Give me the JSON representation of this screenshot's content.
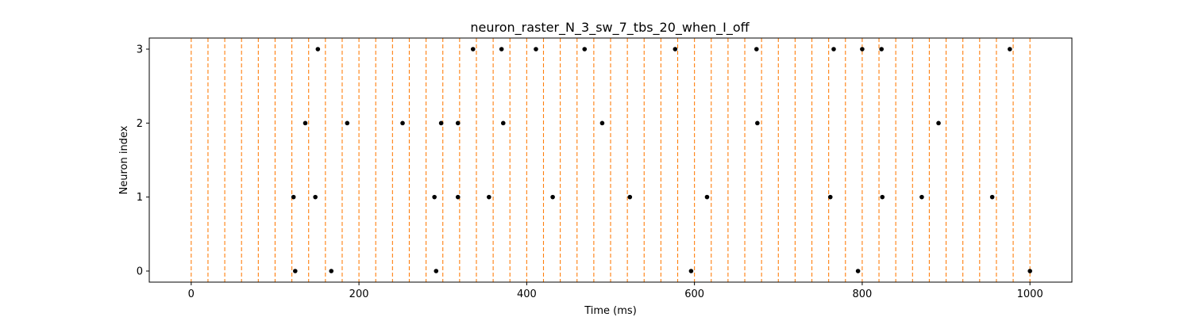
{
  "chart_data": {
    "type": "scatter",
    "title": "neuron_raster_N_3_sw_7_tbs_20_when_I_off",
    "xlabel": "Time (ms)",
    "ylabel": "Neuron index",
    "xlim": [
      -50,
      1050
    ],
    "ylim": [
      -0.15,
      3.15
    ],
    "x_ticks": [
      0,
      200,
      400,
      600,
      800,
      1000
    ],
    "y_ticks": [
      0,
      1,
      2,
      3
    ],
    "grid": false,
    "vertical_lines": {
      "color": "#ff7f0e",
      "style": "dashed",
      "x": [
        0,
        20,
        40,
        60,
        80,
        100,
        120,
        140,
        160,
        180,
        200,
        220,
        240,
        260,
        280,
        300,
        320,
        340,
        360,
        380,
        400,
        420,
        440,
        460,
        480,
        500,
        520,
        540,
        560,
        580,
        600,
        620,
        640,
        660,
        680,
        700,
        720,
        740,
        760,
        780,
        800,
        820,
        840,
        860,
        880,
        900,
        920,
        940,
        960,
        980,
        1000
      ]
    },
    "series": [
      {
        "neuron": 0,
        "color": "#000000",
        "spike_times": [
          124,
          167,
          292,
          596,
          795,
          1000
        ]
      },
      {
        "neuron": 1,
        "color": "#000000",
        "spike_times": [
          122,
          148,
          290,
          318,
          355,
          431,
          523,
          615,
          762,
          824,
          871,
          955
        ]
      },
      {
        "neuron": 2,
        "color": "#000000",
        "spike_times": [
          136,
          186,
          252,
          298,
          318,
          372,
          490,
          675,
          891
        ]
      },
      {
        "neuron": 3,
        "color": "#000000",
        "spike_times": [
          151,
          336,
          370,
          411,
          469,
          577,
          674,
          766,
          800,
          823,
          976
        ]
      }
    ]
  }
}
